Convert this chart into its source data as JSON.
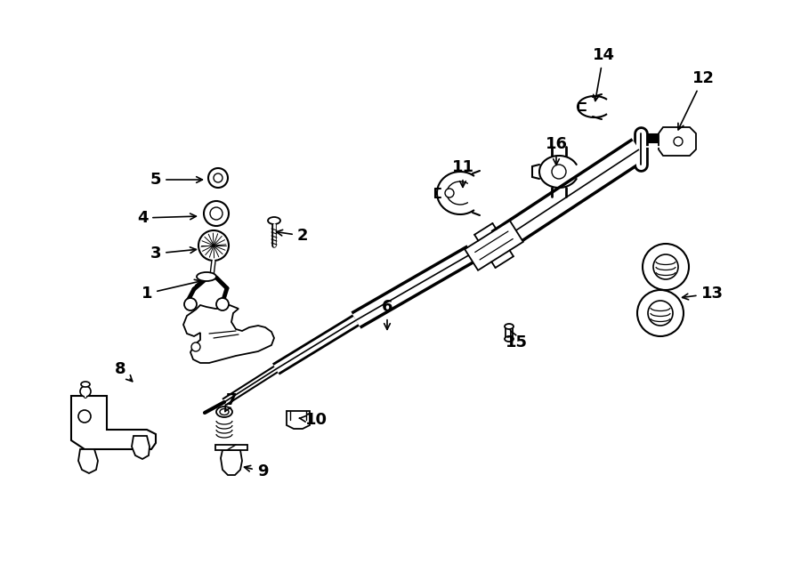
{
  "fig_width": 9.0,
  "fig_height": 6.61,
  "dpi": 100,
  "bg_color": "#ffffff",
  "lc": "#000000",
  "label_fs": 13,
  "labels": [
    [
      "1",
      165,
      330,
      230,
      315
    ],
    [
      "2",
      340,
      265,
      306,
      260
    ],
    [
      "3",
      175,
      285,
      225,
      280
    ],
    [
      "4",
      160,
      245,
      225,
      243
    ],
    [
      "5",
      175,
      202,
      232,
      202
    ],
    [
      "6",
      435,
      345,
      435,
      375
    ],
    [
      "7",
      260,
      450,
      252,
      464
    ],
    [
      "8",
      135,
      415,
      152,
      432
    ],
    [
      "9",
      295,
      530,
      270,
      524
    ],
    [
      "10",
      355,
      472,
      335,
      470
    ],
    [
      "11",
      520,
      188,
      520,
      215
    ],
    [
      "12",
      790,
      88,
      760,
      150
    ],
    [
      "13",
      800,
      330,
      762,
      335
    ],
    [
      "14",
      678,
      62,
      668,
      118
    ],
    [
      "15",
      580,
      385,
      572,
      368
    ],
    [
      "16",
      625,
      162,
      625,
      190
    ]
  ]
}
